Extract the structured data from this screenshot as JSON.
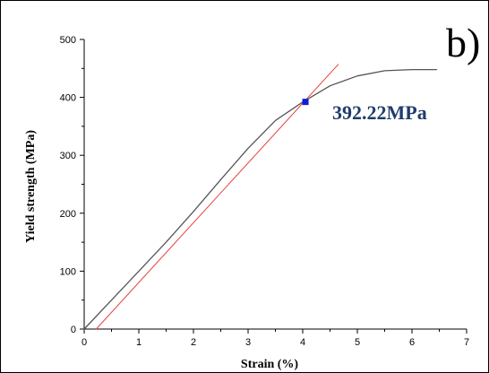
{
  "chart_data": {
    "type": "line",
    "title": "",
    "panel_label": "b)",
    "xlabel": "Strain (%)",
    "ylabel": "Yield strength (MPa)",
    "xlim": [
      0,
      7
    ],
    "ylim": [
      0,
      500
    ],
    "x_ticks": [
      0,
      1,
      2,
      3,
      4,
      5,
      6,
      7
    ],
    "y_ticks": [
      0,
      100,
      200,
      300,
      400,
      500
    ],
    "grid": false,
    "legend": "none",
    "series": [
      {
        "color": "#555555",
        "x": [
          0,
          0.5,
          1.0,
          1.5,
          2.0,
          2.5,
          3.0,
          3.5,
          4.0,
          4.5,
          5.0,
          5.5,
          6.0,
          6.45
        ],
        "y": [
          0,
          50,
          100,
          150,
          203,
          258,
          312,
          360,
          392,
          420,
          437,
          446,
          448,
          448
        ]
      },
      {
        "color": "#e8403a",
        "x": [
          0.22,
          4.65
        ],
        "y": [
          0,
          457
        ]
      }
    ],
    "marker": {
      "x": 4.05,
      "y": 392.22,
      "color": "#0b1fd6"
    },
    "annotation": {
      "text": "392.22MPa"
    }
  }
}
